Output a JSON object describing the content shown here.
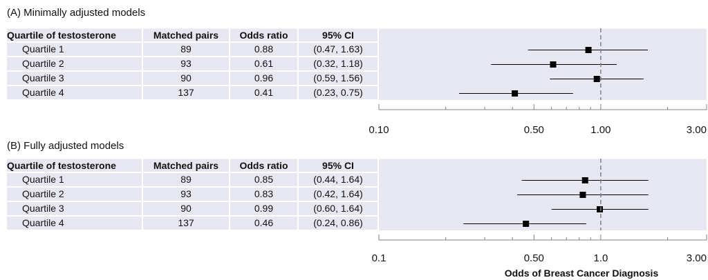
{
  "colors": {
    "row_band": "#e6e7f1",
    "gridline": "#ffffff",
    "marker": "#000000",
    "ci_line": "#000000",
    "reference_line": "#7f7f8f",
    "axis": "#808080"
  },
  "chart_data": [
    {
      "type": "forest",
      "title": "(A) Minimally adjusted models",
      "table_headers": [
        "Quartile of testosterone",
        "Matched pairs",
        "Odds ratio",
        "95% CI"
      ],
      "rows": [
        {
          "label": "Quartile 1",
          "pairs": "89",
          "or_text": "0.88",
          "ci_text": "(0.47, 1.63)",
          "or": 0.88,
          "lo": 0.47,
          "hi": 1.63
        },
        {
          "label": "Quartile 2",
          "pairs": "93",
          "or_text": "0.61",
          "ci_text": "(0.32, 1.18)",
          "or": 0.61,
          "lo": 0.32,
          "hi": 1.18
        },
        {
          "label": "Quartile 3",
          "pairs": "90",
          "or_text": "0.96",
          "ci_text": "(0.59, 1.56)",
          "or": 0.96,
          "lo": 0.59,
          "hi": 1.56
        },
        {
          "label": "Quartile 4",
          "pairs": "137",
          "or_text": "0.41",
          "ci_text": "(0.23, 0.75)",
          "or": 0.41,
          "lo": 0.23,
          "hi": 0.75
        }
      ],
      "x_scale": "log",
      "xlim": [
        0.1,
        3.0
      ],
      "reference_value": 1.0,
      "ticks": [
        {
          "value": 0.1,
          "label": "0.10"
        },
        {
          "value": 0.5,
          "label": "0.50"
        },
        {
          "value": 1.0,
          "label": "1.00"
        },
        {
          "value": 3.0,
          "label": "3.00"
        }
      ],
      "xlabel": ""
    },
    {
      "type": "forest",
      "title": "(B) Fully adjusted models",
      "table_headers": [
        "Quartile of testosterone",
        "Matched pairs",
        "Odds ratio",
        "95% CI"
      ],
      "rows": [
        {
          "label": "Quartile 1",
          "pairs": "89",
          "or_text": "0.85",
          "ci_text": "(0.44, 1.64)",
          "or": 0.85,
          "lo": 0.44,
          "hi": 1.64
        },
        {
          "label": "Quartile 2",
          "pairs": "93",
          "or_text": "0.83",
          "ci_text": "(0.42, 1.64)",
          "or": 0.83,
          "lo": 0.42,
          "hi": 1.64
        },
        {
          "label": "Quartile 3",
          "pairs": "90",
          "or_text": "0.99",
          "ci_text": "(0.60, 1.64)",
          "or": 0.99,
          "lo": 0.6,
          "hi": 1.64
        },
        {
          "label": "Quartile 4",
          "pairs": "137",
          "or_text": "0.46",
          "ci_text": "(0.24, 0.86)",
          "or": 0.46,
          "lo": 0.24,
          "hi": 0.86
        }
      ],
      "x_scale": "log",
      "xlim": [
        0.1,
        3.0
      ],
      "reference_value": 1.0,
      "ticks": [
        {
          "value": 0.1,
          "label": "0.1"
        },
        {
          "value": 0.5,
          "label": "0.50"
        },
        {
          "value": 1.0,
          "label": "1.0"
        },
        {
          "value": 3.0,
          "label": "3.00"
        }
      ],
      "xlabel": "Odds of Breast Cancer Diagnosis"
    }
  ]
}
